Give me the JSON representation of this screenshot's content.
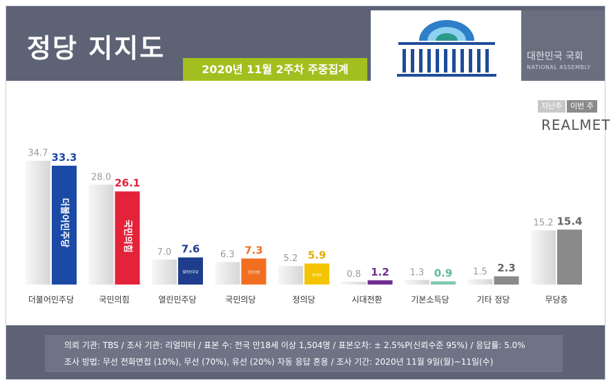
{
  "header": {
    "title": "정당 지지도",
    "subtitle": "2020년 11월 2주차 주중집계",
    "org_korean": "대한민국 국회",
    "org_english": "NATIONAL ASSEMBLY"
  },
  "legend": {
    "prev_label": "지난주",
    "curr_label": "이번 주",
    "brand": "REALMETER"
  },
  "chart_data": {
    "type": "bar",
    "categories": [
      "더불어민주당",
      "국민의힘",
      "열린민주당",
      "국민의당",
      "정의당",
      "시대전환",
      "기본소득당",
      "기타 정당",
      "무당층"
    ],
    "series": [
      {
        "name": "지난주",
        "values": [
          34.7,
          28.0,
          7.0,
          6.3,
          5.2,
          0.8,
          1.3,
          1.5,
          15.2
        ]
      },
      {
        "name": "이번 주",
        "values": [
          33.3,
          26.1,
          7.6,
          7.3,
          5.9,
          1.2,
          0.9,
          2.3,
          15.4
        ]
      }
    ],
    "bar_labels": [
      "더불어민주당",
      "국민의힘",
      "열린민주당",
      "국민의당",
      "정의당"
    ],
    "colors": [
      "#1a4aa6",
      "#e3233a",
      "#1e3d8c",
      "#f26f21",
      "#f5c400",
      "#6f2d91",
      "#7fc8b1",
      "#8a8a8a",
      "#8a8a8a"
    ],
    "label_colors": [
      "#1a4aa6",
      "#e3233a",
      "#1e3d8c",
      "#f26f21",
      "#e0b000",
      "#6f2d91",
      "#5fb89b",
      "#666666",
      "#666666"
    ],
    "ylim": [
      0,
      36
    ]
  },
  "footer": {
    "line1": "의뢰 기관: TBS / 조사 기관: 리얼미터 / 표본 수: 전국 만18세 이상 1,504명 / 표본오차: ± 2.5%P(신뢰수준 95%) / 응답률: 5.0%",
    "line2": "조사 방법: 무선 전화면접 (10%), 무선 (70%), 유선 (20%) 자동 응답 혼용 / 조사 기간: 2020년 11월 9일(월)~11일(수)"
  }
}
